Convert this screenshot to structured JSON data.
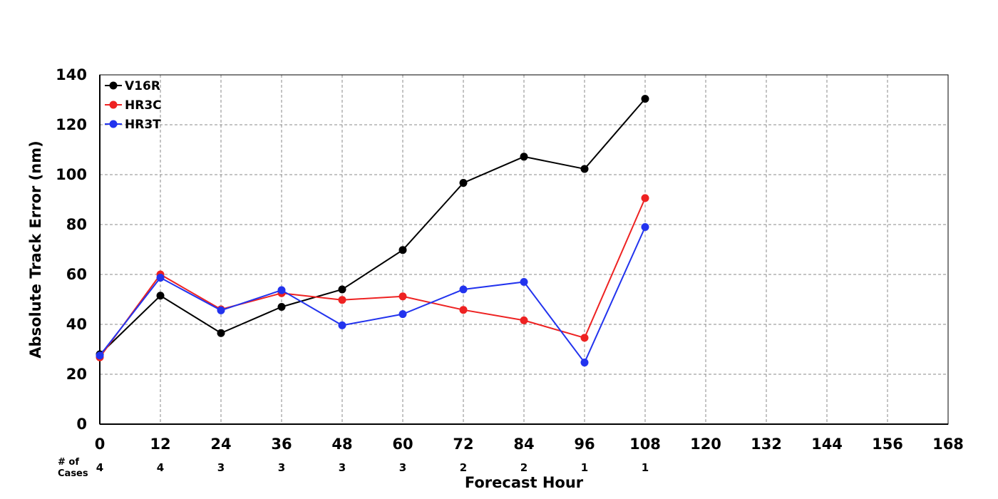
{
  "chart_data": {
    "type": "line",
    "title": "",
    "xlabel": "Forecast Hour",
    "ylabel": "Absolute Track Error (nm)",
    "x_ticks": [
      0,
      12,
      24,
      36,
      48,
      60,
      72,
      84,
      96,
      108,
      120,
      132,
      144,
      156,
      168
    ],
    "y_ticks": [
      0,
      20,
      40,
      60,
      80,
      100,
      120,
      140
    ],
    "xlim": [
      0,
      168
    ],
    "ylim": [
      0,
      140
    ],
    "grid": true,
    "legend_position": "top-left",
    "x": [
      0,
      12,
      24,
      36,
      48,
      60,
      72,
      84,
      96,
      108
    ],
    "series": [
      {
        "name": "V16R",
        "color": "#000000",
        "values": [
          28.0,
          51.5,
          36.5,
          47.0,
          54.0,
          69.8,
          96.7,
          107.2,
          102.3,
          130.4
        ]
      },
      {
        "name": "HR3C",
        "color": "#ee2222",
        "values": [
          26.8,
          60.0,
          46.0,
          52.5,
          49.8,
          51.2,
          45.8,
          41.6,
          34.6,
          90.6
        ]
      },
      {
        "name": "HR3T",
        "color": "#2233ee",
        "values": [
          27.5,
          58.7,
          45.6,
          53.7,
          39.6,
          44.1,
          54.0,
          57.0,
          24.7,
          79.0
        ]
      }
    ],
    "cases": {
      "label_line1": "# of",
      "label_line2": "Cases",
      "values": [
        4,
        4,
        3,
        3,
        3,
        3,
        2,
        2,
        1,
        1
      ]
    }
  }
}
